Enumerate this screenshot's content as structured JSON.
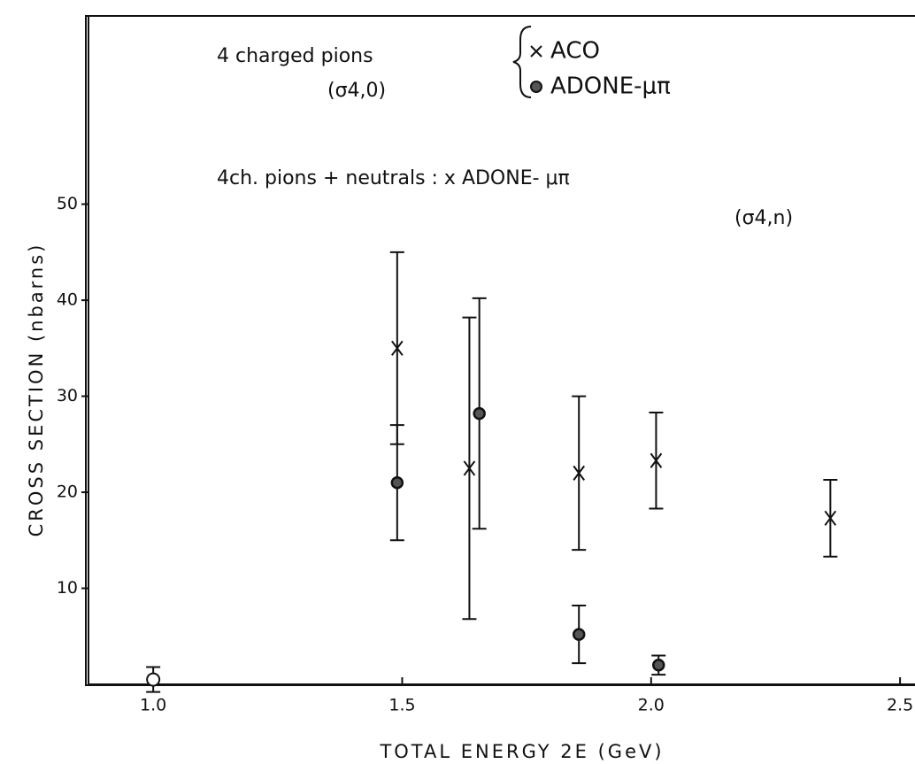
{
  "chart_data": {
    "type": "scatter",
    "annotations": [
      "4 charged pions",
      "(σ4,0)",
      "4ch. pions + neutrals : x ADONE- μπ",
      "(σ4,n)"
    ],
    "xlabel": "TOTAL ENERGY 2E (GeV)",
    "ylabel": "CROSS SECTION (nbarns)",
    "xlim": [
      0.87,
      2.53
    ],
    "ylim": [
      0,
      69.6
    ],
    "xticks": [
      {
        "value": 1,
        "label": "1.0"
      },
      1.5,
      {
        "value": 2,
        "label": "2.0"
      },
      2.5
    ],
    "yticks": [
      10,
      20,
      30,
      40,
      50
    ],
    "grid": false,
    "series": [
      {
        "name": "ACO",
        "marker": "x",
        "color": "#111111",
        "x": [
          1.49,
          1.635,
          1.855,
          2.01,
          2.36
        ],
        "values": [
          35,
          22.5,
          22,
          23.3,
          17.3
        ],
        "errors": [
          10,
          15.7,
          8,
          5,
          4
        ]
      },
      {
        "name": "ADONE-μπ",
        "marker": "dot",
        "color": "#111111",
        "x": [
          1.49,
          1.655,
          1.855,
          2.015
        ],
        "values": [
          21,
          28.2,
          5.2,
          2
        ],
        "errors": [
          6,
          12,
          3,
          1
        ]
      },
      {
        "marker": "open-circle",
        "color": "#111111",
        "x": [
          1.0
        ],
        "values": [
          0.5
        ],
        "errors": [
          1.3
        ]
      }
    ]
  }
}
